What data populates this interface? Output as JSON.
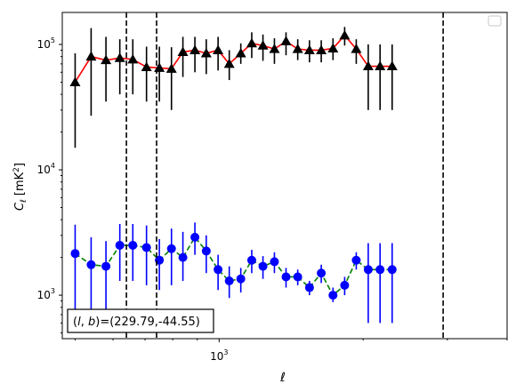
{
  "chart_data": {
    "type": "line",
    "xlabel": "ℓ",
    "ylabel": "C_ℓ [mK²]",
    "x_scale": "log",
    "y_scale": "log",
    "xlim": [
      470,
      4000
    ],
    "ylim": [
      450,
      180000
    ],
    "x_ticks": [
      {
        "value": 1000,
        "base": "10",
        "exp": "3"
      }
    ],
    "y_ticks": [
      {
        "value": 1000,
        "base": "10",
        "exp": "3"
      },
      {
        "value": 10000,
        "base": "10",
        "exp": "4"
      },
      {
        "value": 100000,
        "base": "10",
        "exp": "5"
      }
    ],
    "vlines": [
      640,
      740,
      2940
    ],
    "annotation": "(l, b)=(229.79,-44.55)",
    "annotation_parts": {
      "l": "l",
      "b": "b",
      "values": "=(229.79,-44.55)"
    },
    "legend": "top-right",
    "series": [
      {
        "marker": "triangle",
        "marker_color": "#000000",
        "line_color": "#ff0000",
        "line_style": "solid",
        "errorbar_color": "#000000",
        "x": [
          500,
          540,
          580,
          620,
          660,
          705,
          750,
          795,
          840,
          890,
          940,
          995,
          1050,
          1110,
          1170,
          1235,
          1305,
          1380,
          1460,
          1545,
          1635,
          1730,
          1830,
          1935,
          2050,
          2170,
          2300
        ],
        "y": [
          50000,
          80000,
          75000,
          78000,
          76000,
          66000,
          65000,
          64000,
          87000,
          90000,
          85000,
          90000,
          70000,
          85000,
          102000,
          98000,
          92000,
          106000,
          92000,
          90000,
          90000,
          93000,
          118000,
          92000,
          67000,
          67000,
          67000
        ],
        "err_low": [
          15000,
          27000,
          35000,
          40000,
          40000,
          35000,
          35000,
          30000,
          55000,
          60000,
          58000,
          62000,
          52000,
          70000,
          78000,
          74000,
          70000,
          82000,
          75000,
          72000,
          72000,
          75000,
          98000,
          70000,
          30000,
          30000,
          30000
        ],
        "err_high": [
          85000,
          135000,
          115000,
          110000,
          110000,
          96000,
          96000,
          95000,
          115000,
          115000,
          110000,
          115000,
          90000,
          102000,
          125000,
          120000,
          112000,
          125000,
          110000,
          108000,
          108000,
          112000,
          138000,
          110000,
          100000,
          100000,
          100000
        ]
      },
      {
        "marker": "circle",
        "marker_color": "#0000ff",
        "line_color": "#008000",
        "line_style": "dashed",
        "errorbar_color": "#0000ff",
        "x": [
          500,
          540,
          580,
          620,
          660,
          705,
          750,
          795,
          840,
          890,
          940,
          995,
          1050,
          1110,
          1170,
          1235,
          1305,
          1380,
          1460,
          1545,
          1635,
          1730,
          1830,
          1935,
          2050,
          2170,
          2300
        ],
        "y": [
          2150,
          1750,
          1700,
          2500,
          2500,
          2400,
          1900,
          2350,
          2000,
          2900,
          2250,
          1600,
          1300,
          1350,
          1900,
          1700,
          1850,
          1400,
          1400,
          1150,
          1500,
          1000,
          1200,
          1900,
          1600,
          1600,
          1600
        ],
        "err_low": [
          600,
          500,
          600,
          1300,
          1300,
          1200,
          1100,
          1200,
          1300,
          2100,
          1500,
          1100,
          950,
          1050,
          1500,
          1350,
          1500,
          1150,
          1200,
          1000,
          1250,
          880,
          1000,
          1600,
          600,
          600,
          600
        ],
        "err_high": [
          3650,
          2900,
          2700,
          3700,
          3700,
          3600,
          2800,
          3400,
          3200,
          3800,
          3000,
          2100,
          1700,
          1650,
          2300,
          2050,
          2200,
          1650,
          1600,
          1300,
          1750,
          1150,
          1400,
          2200,
          2600,
          2600,
          2600
        ]
      }
    ]
  }
}
